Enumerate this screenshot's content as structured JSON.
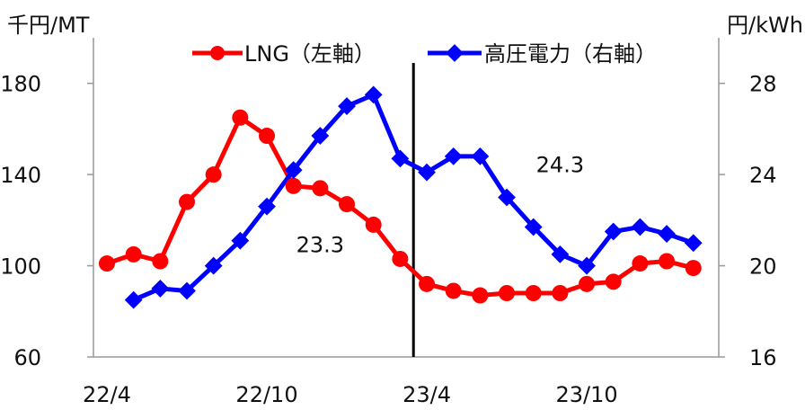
{
  "chart_data": {
    "type": "line",
    "left_unit": "千円/MT",
    "right_unit": "円/kWh",
    "x_tick_labels": [
      "22/4",
      "22/10",
      "23/4",
      "23/10"
    ],
    "left_axis": {
      "range": [
        60,
        200
      ],
      "ticks": [
        60,
        100,
        140,
        180
      ]
    },
    "right_axis": {
      "range": [
        16,
        30
      ],
      "ticks": [
        16,
        20,
        24,
        28
      ]
    },
    "months": [
      "22/4",
      "22/5",
      "22/6",
      "22/7",
      "22/8",
      "22/9",
      "22/10",
      "22/11",
      "22/12",
      "23/1",
      "23/2",
      "23/3",
      "23/4",
      "23/5",
      "23/6",
      "23/7",
      "23/8",
      "23/9",
      "23/10",
      "23/11",
      "23/12",
      "24/1",
      "24/2",
      "24/3"
    ],
    "series": [
      {
        "name": "LNG（左軸）",
        "axis": "left",
        "color": "#ff0000",
        "marker": "circle",
        "values": [
          101,
          105,
          102,
          128,
          140,
          165,
          157,
          135,
          134,
          127,
          118,
          103,
          92,
          89,
          87,
          88,
          88,
          88,
          92,
          93,
          101,
          102,
          99,
          null
        ]
      },
      {
        "name": "高圧電力（右軸）",
        "axis": "right",
        "color": "#0000ff",
        "marker": "diamond",
        "values": [
          null,
          18.5,
          19.0,
          18.9,
          20.0,
          21.1,
          22.6,
          24.2,
          25.7,
          27.0,
          27.5,
          24.7,
          24.1,
          24.8,
          24.8,
          23.0,
          21.7,
          20.5,
          20.0,
          21.5,
          21.7,
          21.4,
          21.0,
          null
        ]
      }
    ],
    "annotations": [
      {
        "text": "23.3",
        "x": "22/12",
        "y_left": 106
      },
      {
        "text": "24.3",
        "x": "23/9",
        "y_left": 141
      }
    ],
    "divider_at": "23/4",
    "legend": "top-center",
    "grid": false
  }
}
